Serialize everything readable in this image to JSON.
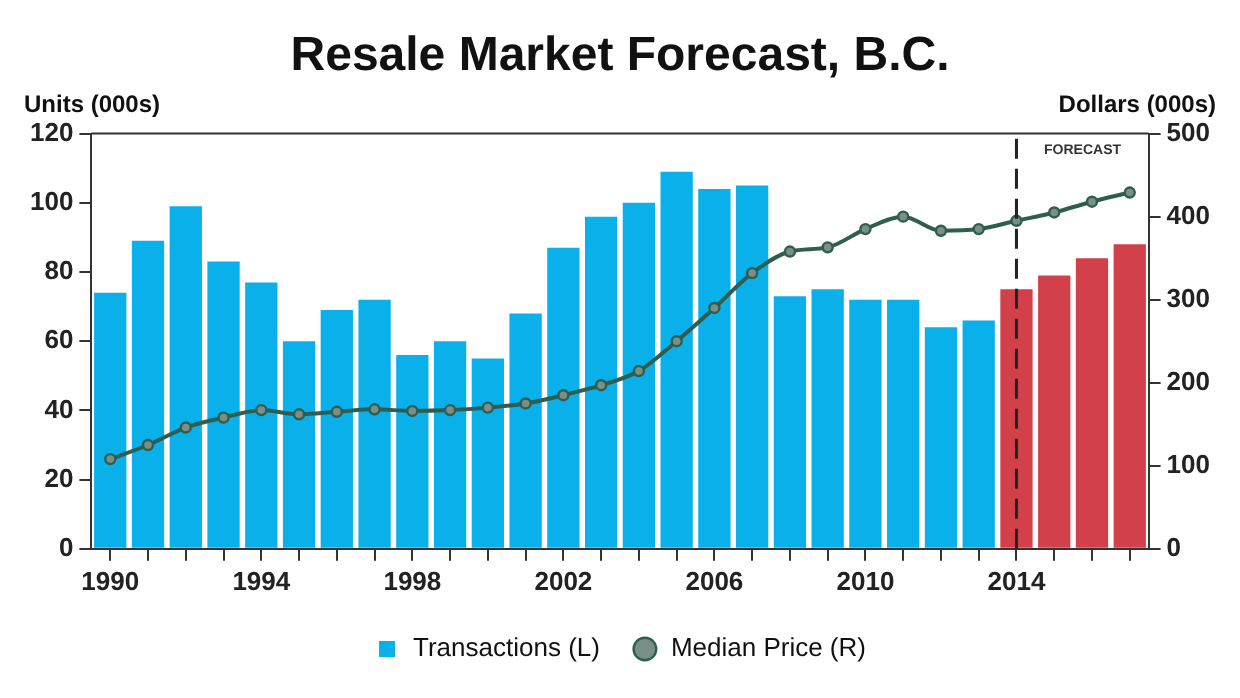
{
  "chart_data": {
    "type": "bar",
    "title": "Resale Market Forecast, B.C.",
    "ylabel": "Units (000s)",
    "y2label": "Dollars (000s)",
    "categories": [
      "1990",
      null,
      null,
      null,
      "1994",
      null,
      null,
      null,
      "1998",
      null,
      null,
      null,
      "2002",
      null,
      null,
      null,
      "2006",
      null,
      null,
      null,
      "2010",
      null,
      null,
      null,
      "2014",
      null,
      null,
      null
    ],
    "series": [
      {
        "name": "Transactions (L)",
        "colors": [
          "#0ab0ea",
          "#0ab0ea",
          "#0ab0ea",
          "#0ab0ea",
          "#0ab0ea",
          "#0ab0ea",
          "#0ab0ea",
          "#0ab0ea",
          "#0ab0ea",
          "#0ab0ea",
          "#0ab0ea",
          "#0ab0ea",
          "#0ab0ea",
          "#0ab0ea",
          "#0ab0ea",
          "#0ab0ea",
          "#0ab0ea",
          "#0ab0ea",
          "#0ab0ea",
          "#0ab0ea",
          "#0ab0ea",
          "#0ab0ea",
          "#0ab0ea",
          "#0ab0ea",
          "#d2414a",
          "#d2414a",
          "#d2414a",
          "#d2414a"
        ],
        "values": [
          74,
          89,
          99,
          83,
          77,
          60,
          69,
          72,
          56,
          60,
          55,
          68,
          87,
          96,
          100,
          109,
          104,
          105,
          73,
          75,
          72,
          72,
          64,
          66,
          75,
          79,
          84,
          88
        ]
      },
      {
        "name": "Median Price (R)",
        "type": "line",
        "axis": "y2",
        "color": "#2f5d50",
        "values": [
          108,
          125,
          146,
          158,
          167,
          162,
          165,
          168,
          166,
          167,
          170,
          175,
          185,
          197,
          214,
          250,
          290,
          332,
          358,
          363,
          385,
          400,
          383,
          385,
          395,
          405,
          418,
          429
        ]
      }
    ],
    "marker": "circle",
    "ylim": [
      0,
      120
    ],
    "yticks": [
      0,
      20,
      40,
      60,
      80,
      100,
      120
    ],
    "y2lim": [
      0,
      500
    ],
    "y2ticks": [
      0,
      100,
      200,
      300,
      400,
      500
    ],
    "ref_lines": [
      {
        "axis": "x",
        "value": "2014",
        "label": "FORECAST",
        "line_style": "dashed"
      }
    ],
    "grid": false,
    "legend": "bottom"
  }
}
